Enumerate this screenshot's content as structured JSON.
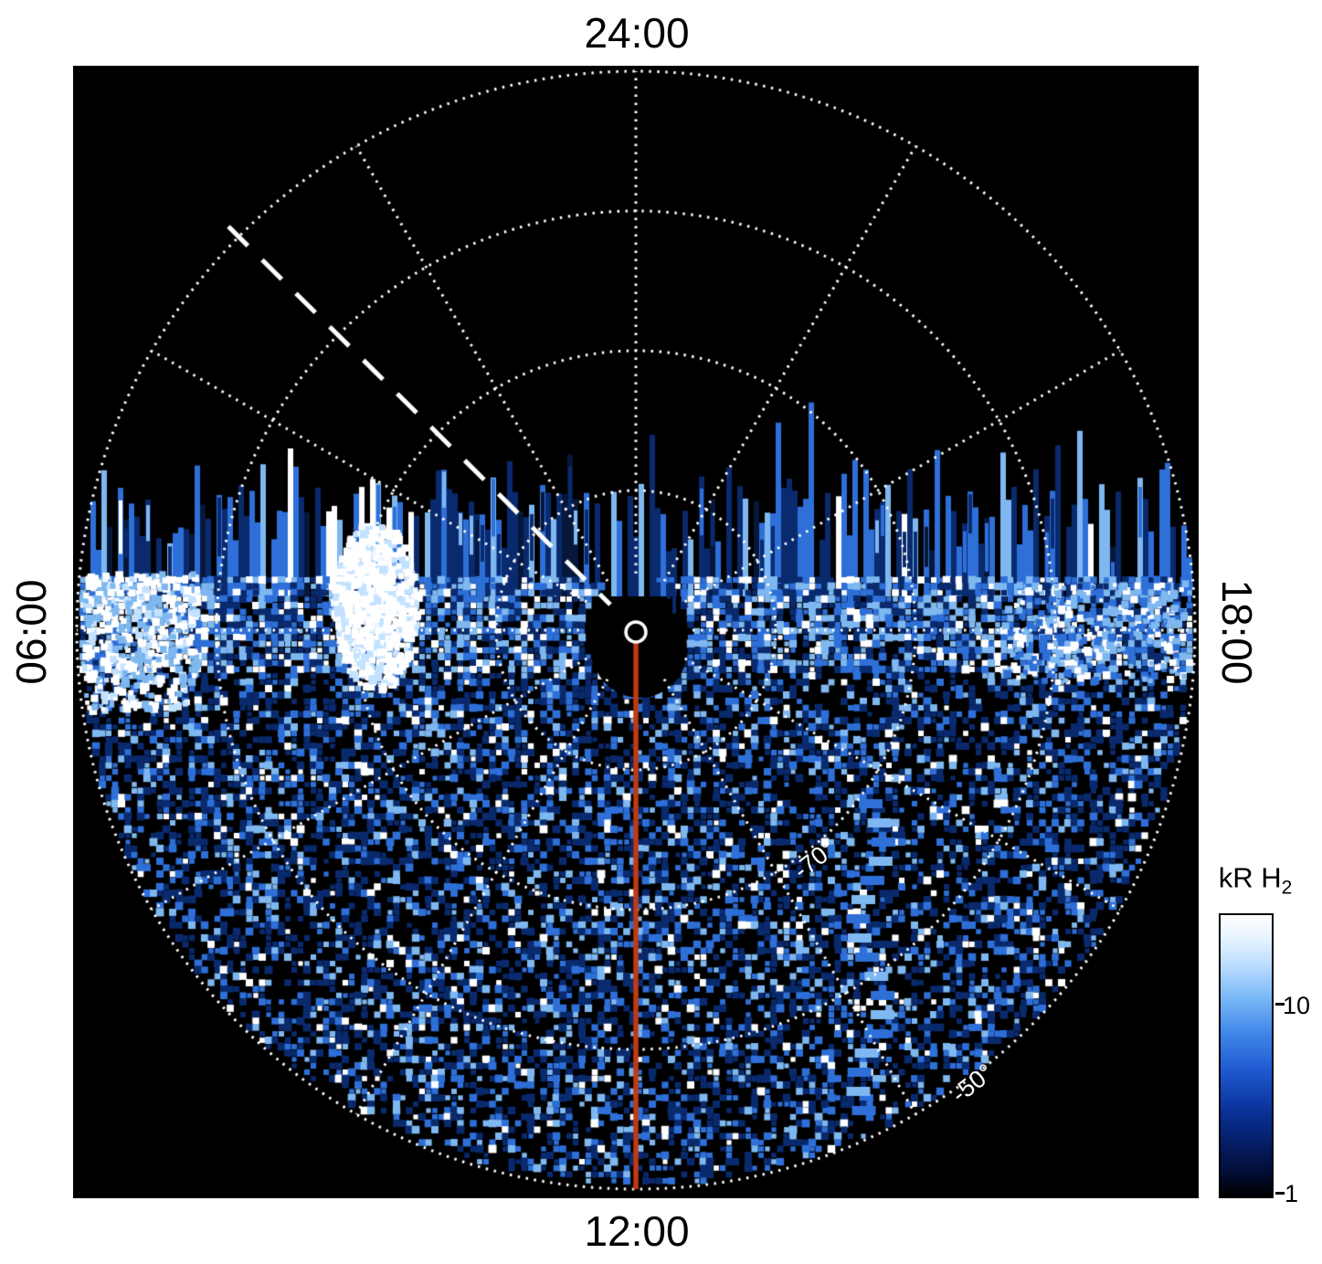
{
  "plot": {
    "time_labels": {
      "top": "24:00",
      "bottom": "12:00",
      "left": "06:00",
      "right": "18:00"
    },
    "lat_labels": [
      {
        "text": "-70°"
      },
      {
        "text": "-50°"
      }
    ],
    "palette": {
      "background": "#000000",
      "grid": "#ffffff",
      "meridian": "#c03a12",
      "dashed_line": "#ffffff",
      "black": "#000000",
      "navy": "#061739",
      "dark": "#0a2a6e",
      "mid": "#2e6fd8",
      "light": "#7fb8f0",
      "pale": "#c3e2ff",
      "white": "#ffffff"
    }
  },
  "colorbar": {
    "title_main": "kR H",
    "title_sub": "2",
    "ticks": [
      "10",
      "1"
    ],
    "gradient": [
      "#ffffff 0%",
      "#e8f4ff 8%",
      "#b9dcff 18%",
      "#77b6f5 30%",
      "#3f86e8 42%",
      "#1f5ad0 55%",
      "#0c35a0 68%",
      "#051f6a 80%",
      "#020e38 91%",
      "#000000 100%"
    ]
  },
  "chart_data": {
    "type": "heatmap",
    "projection": "polar",
    "title": "",
    "angular_axis": {
      "quantity": "local time",
      "labels": [
        {
          "text": "24:00",
          "position": "top"
        },
        {
          "text": "06:00",
          "position": "left"
        },
        {
          "text": "12:00",
          "position": "bottom"
        },
        {
          "text": "18:00",
          "position": "right"
        }
      ],
      "spoke_spacing_hours": 2
    },
    "radial_axis": {
      "quantity": "latitude",
      "rings_deg": [
        -80,
        -70,
        -60,
        -50
      ],
      "labeled_rings": [
        "-70°",
        "-50°"
      ],
      "pole_at_center": true
    },
    "colorbar": {
      "label": "kR H2",
      "scale": "log",
      "tick_values": [
        10,
        1
      ],
      "min": 1
    },
    "annotations": [
      {
        "name": "meridian-line",
        "style": "solid red line",
        "from": "pole",
        "toward": "12:00"
      },
      {
        "name": "dashed-track",
        "style": "white dashed line",
        "from": "near pole",
        "toward": "upper-left (~03:00 sector) out to the -50° ring"
      },
      {
        "name": "pole-marker",
        "style": "small white open circle at the pole"
      }
    ],
    "content_summary": [
      "Black (no data) sector around 24:00 above the dawn-dusk (06:00-18:00) line",
      "Ragged boundary of vertical blue emission streaks just above the 06:00-18:00 line",
      "Very bright white emission patch between 06:00 and 24:00 near -60° latitude",
      "Bright white emission along the 06:00 (left) limb",
      "Mottled speckled blue emission (~1-10 kR H2) filling the 12:00 (dayside) hemisphere",
      "Diagonal banded stripe feature in the 15:00-16:00 sector between -70° and -50°",
      "Dotted white polar grid: latitude rings every 10° from -80° to -50°, spokes every 2 hours"
    ]
  }
}
